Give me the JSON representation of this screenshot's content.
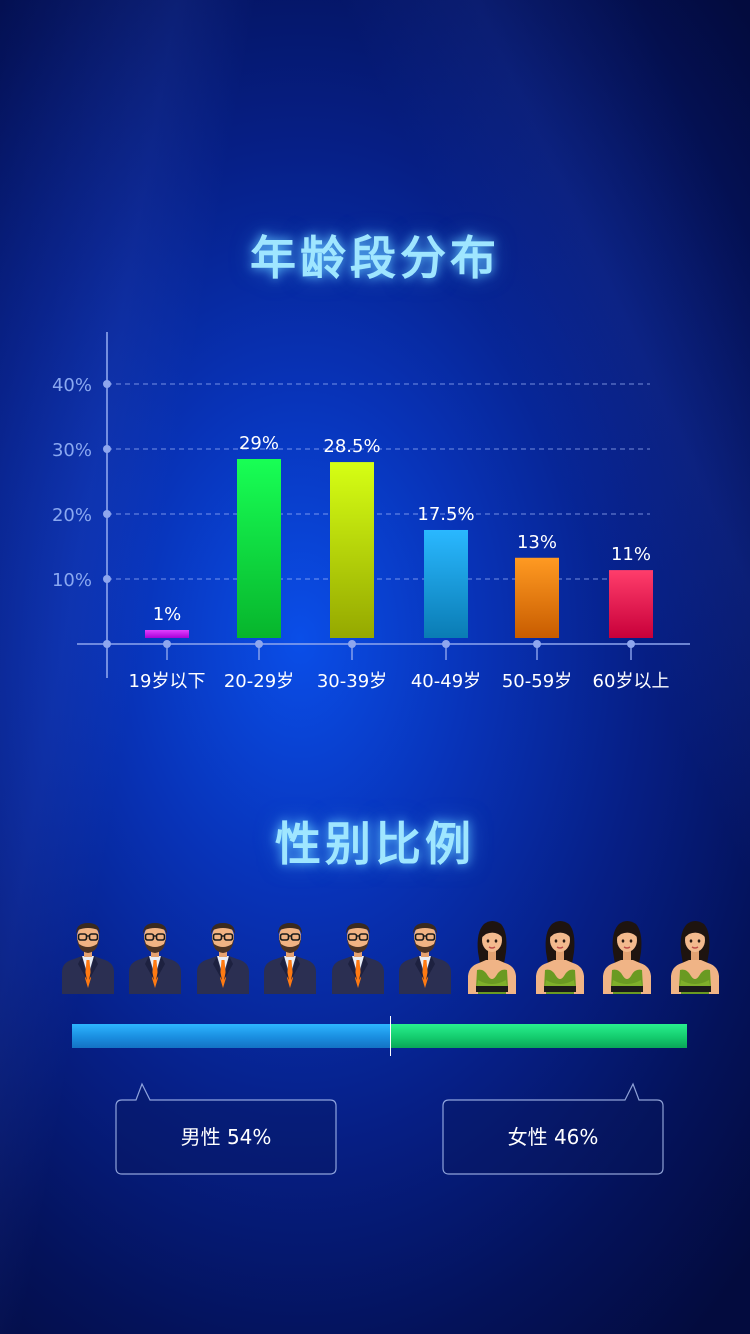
{
  "age_section": {
    "title": "年龄段分布"
  },
  "chart_data": {
    "type": "bar",
    "categories": [
      "19岁以下",
      "20-29岁",
      "30-39岁",
      "40-49岁",
      "50-59岁",
      "60岁以上"
    ],
    "values": [
      1,
      29,
      28.5,
      17.5,
      13,
      11
    ],
    "data_labels": [
      "1%",
      "29%",
      "28.5%",
      "17.5%",
      "13%",
      "11%"
    ],
    "yticks": [
      "10%",
      "20%",
      "30%",
      "40%"
    ],
    "ytick_values": [
      10,
      20,
      30,
      40
    ],
    "ylim": [
      0,
      40
    ],
    "grid": true,
    "bar_colors": [
      [
        "#e040ff",
        "#a800d8"
      ],
      [
        "#18ff55",
        "#07b52c"
      ],
      [
        "#d6ff14",
        "#95a800"
      ],
      [
        "#2ab8ff",
        "#0a7cb4"
      ],
      [
        "#ff9a22",
        "#c85c00"
      ],
      [
        "#ff3d6b",
        "#c8003a"
      ]
    ]
  },
  "gender_section": {
    "title": "性别比例",
    "male": {
      "label": "男性 54%",
      "percent": 54,
      "icon": "male-person-icon",
      "count": 6
    },
    "female": {
      "label": "女性 46%",
      "percent": 46,
      "icon": "female-person-icon",
      "count": 4
    },
    "colors": {
      "male": "#1a8ee0",
      "female": "#14cc6e"
    }
  }
}
